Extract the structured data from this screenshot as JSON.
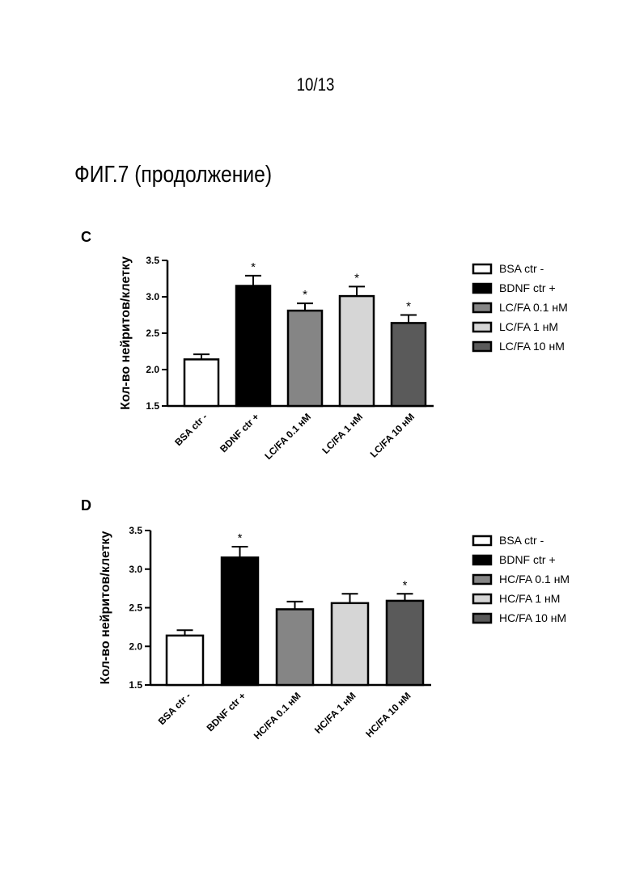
{
  "page_number": "10/13",
  "figure_title": "ФИГ.7 (продолжение)",
  "colors": {
    "BSA ctr -": "#ffffff",
    "BDNF ctr +": "#000000",
    "0.1": "#858585",
    "1": "#d6d6d6",
    "10": "#5a5a5a"
  },
  "chart_data": [
    {
      "panel": "C",
      "type": "bar",
      "ylabel": "Кол-во нейритов/клетку",
      "ylim": [
        1.5,
        3.5
      ],
      "yticks": [
        "1.5",
        "2.0",
        "2.5",
        "3.0",
        "3.5"
      ],
      "categories": [
        "BSA ctr -",
        "BDNF ctr +",
        "LC/FA 0.1 нМ",
        "LC/FA 1 нМ",
        "LC/FA 10 нМ"
      ],
      "values": [
        2.14,
        3.15,
        2.81,
        3.01,
        2.64
      ],
      "errors": [
        0.07,
        0.14,
        0.1,
        0.13,
        0.11
      ],
      "significance": [
        "",
        "*",
        "*",
        "*",
        "*"
      ],
      "legend": [
        "BSA ctr -",
        "BDNF ctr +",
        "LC/FA 0.1 нМ",
        "LC/FA 1 нМ",
        "LC/FA 10 нМ"
      ],
      "legend_position": "right",
      "grid": false
    },
    {
      "panel": "D",
      "type": "bar",
      "ylabel": "Кол-во нейритов/клетку",
      "ylim": [
        1.5,
        3.5
      ],
      "yticks": [
        "1.5",
        "2.0",
        "2.5",
        "3.0",
        "3.5"
      ],
      "categories": [
        "BSA ctr -",
        "BDNF ctr +",
        "HC/FA 0.1 нМ",
        "HC/FA 1 нМ",
        "HC/FA 10 нМ"
      ],
      "values": [
        2.14,
        3.15,
        2.48,
        2.56,
        2.59
      ],
      "errors": [
        0.07,
        0.14,
        0.1,
        0.12,
        0.09
      ],
      "significance": [
        "",
        "*",
        "",
        "",
        "*"
      ],
      "legend": [
        "BSA ctr -",
        "BDNF ctr +",
        "HC/FA 0.1 нМ",
        "HC/FA 1 нМ",
        "HC/FA 10 нМ"
      ],
      "legend_position": "right",
      "grid": false
    }
  ]
}
